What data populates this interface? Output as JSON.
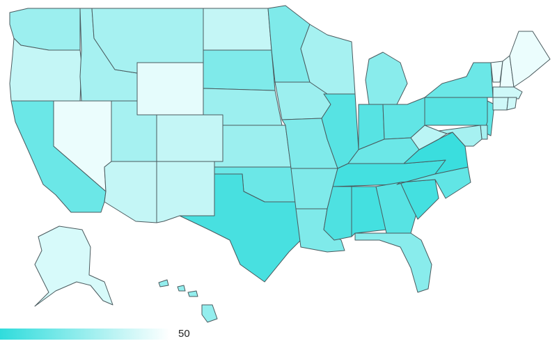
{
  "map": {
    "low_color": "#f5ffff",
    "high_color": "#30dcdc",
    "states": [
      {
        "id": "WA",
        "level": 0.45
      },
      {
        "id": "OR",
        "level": 0.25
      },
      {
        "id": "CA",
        "level": 0.7
      },
      {
        "id": "NV",
        "level": 0.05
      },
      {
        "id": "ID",
        "level": 0.4
      },
      {
        "id": "MT",
        "level": 0.4
      },
      {
        "id": "WY",
        "level": 0.08
      },
      {
        "id": "UT",
        "level": 0.4
      },
      {
        "id": "AZ",
        "level": 0.25
      },
      {
        "id": "CO",
        "level": 0.25
      },
      {
        "id": "NM",
        "level": 0.25
      },
      {
        "id": "ND",
        "level": 0.25
      },
      {
        "id": "SD",
        "level": 0.6
      },
      {
        "id": "NE",
        "level": 0.45
      },
      {
        "id": "KS",
        "level": 0.45
      },
      {
        "id": "OK",
        "level": 0.7
      },
      {
        "id": "TX",
        "level": 0.88
      },
      {
        "id": "MN",
        "level": 0.6
      },
      {
        "id": "IA",
        "level": 0.45
      },
      {
        "id": "MO",
        "level": 0.6
      },
      {
        "id": "AR",
        "level": 0.6
      },
      {
        "id": "LA",
        "level": 0.6
      },
      {
        "id": "WI",
        "level": 0.4
      },
      {
        "id": "IL",
        "level": 0.8
      },
      {
        "id": "MI",
        "level": 0.55
      },
      {
        "id": "IN",
        "level": 0.8
      },
      {
        "id": "OH",
        "level": 0.75
      },
      {
        "id": "KY",
        "level": 0.7
      },
      {
        "id": "TN",
        "level": 0.9
      },
      {
        "id": "MS",
        "level": 0.85
      },
      {
        "id": "AL",
        "level": 0.9
      },
      {
        "id": "GA",
        "level": 0.8
      },
      {
        "id": "FL",
        "level": 0.55
      },
      {
        "id": "SC",
        "level": 0.9
      },
      {
        "id": "NC",
        "level": 0.75
      },
      {
        "id": "VA",
        "level": 0.95
      },
      {
        "id": "WV",
        "level": 0.3
      },
      {
        "id": "PA",
        "level": 0.8
      },
      {
        "id": "NY",
        "level": 0.7
      },
      {
        "id": "ME",
        "level": 0.05
      },
      {
        "id": "VT",
        "level": 0.05
      },
      {
        "id": "NH",
        "level": 0.05
      },
      {
        "id": "MA",
        "level": 0.2
      },
      {
        "id": "CT",
        "level": 0.2
      },
      {
        "id": "RI",
        "level": 0.2
      },
      {
        "id": "NJ",
        "level": 0.75
      },
      {
        "id": "DE",
        "level": 0.4
      },
      {
        "id": "MD",
        "level": 0.4
      },
      {
        "id": "AK",
        "level": 0.15
      },
      {
        "id": "HI",
        "level": 0.5
      }
    ]
  },
  "legend": {
    "max_label": "50"
  }
}
